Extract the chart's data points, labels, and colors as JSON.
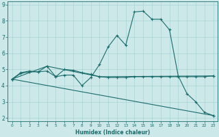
{
  "xlabel": "Humidex (Indice chaleur)",
  "xlim": [
    -0.5,
    23.5
  ],
  "ylim": [
    1.8,
    9.2
  ],
  "yticks": [
    2,
    3,
    4,
    5,
    6,
    7,
    8,
    9
  ],
  "xticks": [
    0,
    1,
    2,
    3,
    4,
    5,
    6,
    7,
    8,
    9,
    10,
    11,
    12,
    13,
    14,
    15,
    16,
    17,
    18,
    19,
    20,
    21,
    22,
    23
  ],
  "background_color": "#cce8e8",
  "grid_color": "#a8d4d4",
  "line_color": "#1a6b6b",
  "lines": [
    {
      "x": [
        0,
        1,
        2,
        3,
        4,
        5,
        6,
        7,
        8,
        9,
        10,
        11,
        12,
        13,
        14,
        15,
        16,
        17,
        18,
        19,
        20,
        21,
        22,
        23
      ],
      "y": [
        4.4,
        4.8,
        4.9,
        4.85,
        5.2,
        4.55,
        4.65,
        4.65,
        4.0,
        4.5,
        5.3,
        6.4,
        7.1,
        6.5,
        8.55,
        8.6,
        8.1,
        8.1,
        7.45,
        4.6,
        3.5,
        3.0,
        2.35,
        2.15
      ]
    },
    {
      "x": [
        0,
        1,
        2,
        3,
        4,
        5,
        6,
        7,
        8,
        9,
        10,
        11,
        12,
        13,
        14,
        15,
        16,
        17,
        18,
        19,
        20,
        21,
        22,
        23
      ],
      "y": [
        4.4,
        4.75,
        4.85,
        4.85,
        4.9,
        4.55,
        5.0,
        4.95,
        4.8,
        4.7,
        4.55,
        4.5,
        4.5,
        4.5,
        4.55,
        4.55,
        4.55,
        4.55,
        4.55,
        4.55,
        4.55,
        4.55,
        4.55,
        4.6
      ]
    },
    {
      "x": [
        0,
        23
      ],
      "y": [
        4.4,
        2.15
      ]
    },
    {
      "x": [
        0,
        4,
        10,
        23
      ],
      "y": [
        4.4,
        5.2,
        4.55,
        4.6
      ]
    }
  ]
}
